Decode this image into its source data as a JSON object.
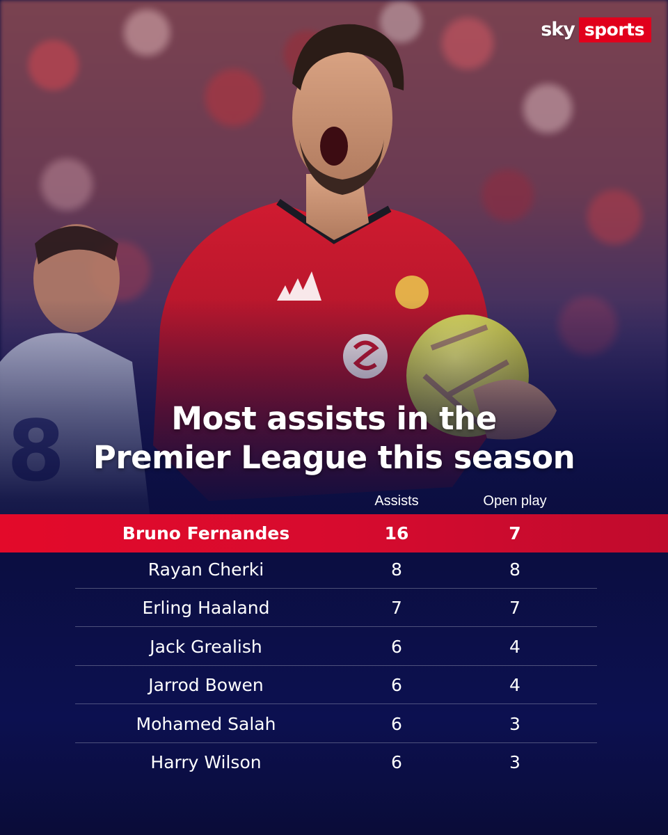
{
  "brand": {
    "logo_part1": "sky",
    "logo_part2": "sports",
    "logo_red": "#e1001c"
  },
  "title": {
    "line1": "Most assists in the",
    "line2": "Premier League this season"
  },
  "columns": {
    "assists": "Assists",
    "open_play": "Open play"
  },
  "rows": [
    {
      "name": "Bruno Fernandes",
      "assists": "16",
      "open_play": "7",
      "highlight": true
    },
    {
      "name": "Rayan Cherki",
      "assists": "8",
      "open_play": "8"
    },
    {
      "name": "Erling Haaland",
      "assists": "7",
      "open_play": "7"
    },
    {
      "name": "Jack Grealish",
      "assists": "6",
      "open_play": "4"
    },
    {
      "name": "Jarrod Bowen",
      "assists": "6",
      "open_play": "4"
    },
    {
      "name": "Mohamed Salah",
      "assists": "6",
      "open_play": "3"
    },
    {
      "name": "Harry Wilson",
      "assists": "6",
      "open_play": "3"
    }
  ],
  "colors": {
    "highlight_row": "#e30a2a",
    "background_navy": "#0b0e40",
    "kit_red": "#c8172c"
  }
}
